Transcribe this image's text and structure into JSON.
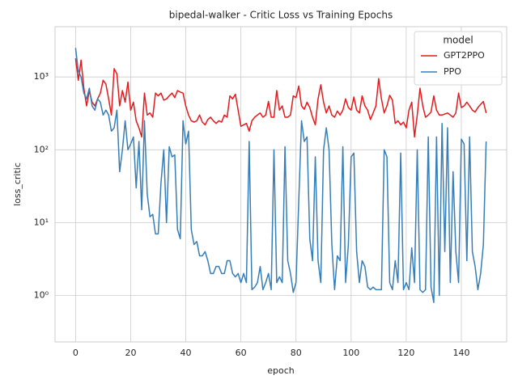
{
  "chart_data": {
    "type": "line",
    "title": "bipedal-walker - Critic Loss vs Training Epochs",
    "xlabel": "epoch",
    "ylabel": "loss_critic",
    "log_y": true,
    "grid": true,
    "legend_loc": "upper right",
    "legend_title": "model",
    "xlim": [
      -7.45,
      156.45
    ],
    "xticks": [
      0,
      20,
      40,
      60,
      80,
      100,
      120,
      140
    ],
    "ylim": [
      0.23,
      4900
    ],
    "yticks": [
      {
        "value": 1,
        "label": "10⁰"
      },
      {
        "value": 10,
        "label": "10¹"
      },
      {
        "value": 100,
        "label": "10²"
      },
      {
        "value": 1000,
        "label": "10³"
      }
    ],
    "x": [
      0,
      1,
      2,
      3,
      4,
      5,
      6,
      7,
      8,
      9,
      10,
      11,
      12,
      13,
      14,
      15,
      16,
      17,
      18,
      19,
      20,
      21,
      22,
      23,
      24,
      25,
      26,
      27,
      28,
      29,
      30,
      31,
      32,
      33,
      34,
      35,
      36,
      37,
      38,
      39,
      40,
      41,
      42,
      43,
      44,
      45,
      46,
      47,
      48,
      49,
      50,
      51,
      52,
      53,
      54,
      55,
      56,
      57,
      58,
      59,
      60,
      61,
      62,
      63,
      64,
      65,
      66,
      67,
      68,
      69,
      70,
      71,
      72,
      73,
      74,
      75,
      76,
      77,
      78,
      79,
      80,
      81,
      82,
      83,
      84,
      85,
      86,
      87,
      88,
      89,
      90,
      91,
      92,
      93,
      94,
      95,
      96,
      97,
      98,
      99,
      100,
      101,
      102,
      103,
      104,
      105,
      106,
      107,
      108,
      109,
      110,
      111,
      112,
      113,
      114,
      115,
      116,
      117,
      118,
      119,
      120,
      121,
      122,
      123,
      124,
      125,
      126,
      127,
      128,
      129,
      130,
      131,
      132,
      133,
      134,
      135,
      136,
      137,
      138,
      139,
      140,
      141,
      142,
      143,
      144,
      145,
      146,
      147,
      148,
      149
    ],
    "series": [
      {
        "name": "GPT2PPO",
        "color": "#e41a1c",
        "values": [
          1800,
          900,
          1700,
          700,
          400,
          650,
          450,
          400,
          500,
          600,
          900,
          800,
          500,
          300,
          1300,
          1100,
          400,
          650,
          450,
          850,
          350,
          450,
          250,
          200,
          150,
          600,
          300,
          320,
          280,
          600,
          550,
          600,
          480,
          500,
          550,
          600,
          520,
          650,
          620,
          600,
          400,
          300,
          250,
          240,
          250,
          300,
          240,
          220,
          260,
          280,
          250,
          230,
          250,
          240,
          300,
          280,
          550,
          500,
          580,
          350,
          210,
          220,
          230,
          180,
          250,
          280,
          300,
          320,
          280,
          300,
          460,
          280,
          280,
          650,
          350,
          400,
          280,
          280,
          300,
          550,
          520,
          750,
          400,
          360,
          450,
          380,
          280,
          220,
          500,
          780,
          450,
          320,
          400,
          300,
          280,
          340,
          300,
          350,
          500,
          380,
          350,
          530,
          350,
          320,
          550,
          400,
          350,
          260,
          320,
          400,
          950,
          500,
          320,
          400,
          560,
          480,
          230,
          250,
          220,
          240,
          200,
          350,
          450,
          150,
          300,
          700,
          400,
          280,
          300,
          330,
          550,
          350,
          300,
          300,
          310,
          320,
          300,
          280,
          320,
          600,
          380,
          400,
          450,
          400,
          350,
          330,
          380,
          420,
          460,
          320
        ]
      },
      {
        "name": "PPO",
        "color": "#377eb8",
        "values": [
          2500,
          1200,
          1000,
          600,
          500,
          700,
          400,
          350,
          500,
          450,
          300,
          350,
          300,
          180,
          200,
          350,
          50,
          100,
          250,
          100,
          120,
          150,
          30,
          130,
          15,
          250,
          25,
          12,
          13,
          7,
          7,
          35,
          100,
          10,
          110,
          80,
          85,
          8,
          6,
          250,
          120,
          180,
          8,
          5,
          5.5,
          3.5,
          3.5,
          4,
          3,
          2,
          2,
          2.5,
          2.5,
          2,
          2,
          3,
          3,
          2,
          1.8,
          2,
          1.5,
          2,
          1.5,
          130,
          1.2,
          1.3,
          1.5,
          2.5,
          1.2,
          1.5,
          2,
          1.2,
          100,
          1.5,
          1.8,
          1.5,
          110,
          3,
          2,
          1.1,
          1.5,
          20,
          250,
          130,
          150,
          6,
          3,
          80,
          3,
          1.5,
          100,
          200,
          100,
          5,
          1.2,
          3.5,
          3,
          110,
          1.5,
          5,
          80,
          90,
          4,
          1.5,
          3,
          2.5,
          1.3,
          1.2,
          1.3,
          1.2,
          1.2,
          1.2,
          100,
          80,
          1.5,
          1.2,
          3,
          1.5,
          90,
          1.2,
          1.5,
          1.2,
          4.5,
          1.5,
          100,
          1.2,
          1.1,
          1.2,
          150,
          1.3,
          0.8,
          150,
          1,
          230,
          4,
          200,
          1.5,
          50,
          4,
          1.5,
          140,
          120,
          3,
          150,
          4,
          2.5,
          1.2,
          2,
          5,
          130
        ]
      }
    ]
  }
}
